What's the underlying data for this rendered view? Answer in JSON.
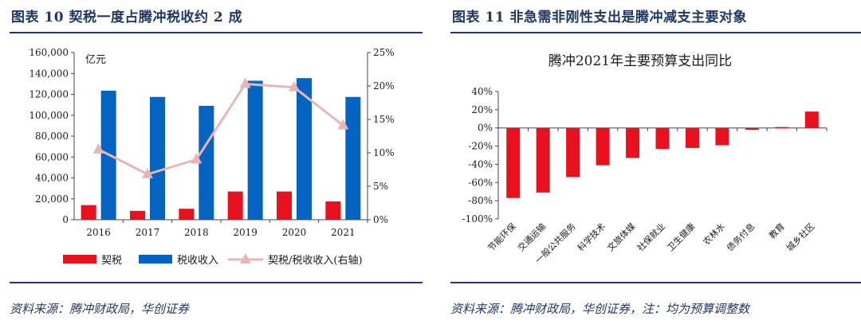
{
  "left_panel": {
    "figure_title": "图表 10   契税一度占腾冲税收约 2 成",
    "source": "资料来源：腾冲财政局，华创证券"
  },
  "right_panel": {
    "figure_title": "图表 11   非急需非刚性支出是腾冲减支主要对象",
    "source": "资料来源：腾冲财政局，华创证券，注：均为预算调整数"
  },
  "chart_data": [
    {
      "type": "bar",
      "title": "",
      "unit_label": "亿元",
      "categories": [
        "2016",
        "2017",
        "2018",
        "2019",
        "2020",
        "2021"
      ],
      "series": [
        {
          "name": "契税",
          "type": "bar",
          "axis": "left",
          "color": "#e8111d",
          "values": [
            14000,
            8500,
            10500,
            27000,
            27000,
            17500
          ]
        },
        {
          "name": "税收收入",
          "type": "bar",
          "axis": "left",
          "color": "#0563c1",
          "values": [
            123500,
            117500,
            109000,
            133000,
            135500,
            117500
          ]
        },
        {
          "name": "契税/税收收入(右轴)",
          "type": "line",
          "axis": "right",
          "color": "#e7b7b7",
          "values": [
            10.5,
            6.8,
            9.0,
            20.3,
            19.8,
            14.1
          ]
        }
      ],
      "y_left": {
        "min": 0,
        "max": 160000,
        "step": 20000,
        "ticks": [
          "0",
          "20,000",
          "40,000",
          "60,000",
          "80,000",
          "100,000",
          "120,000",
          "140,000",
          "160,000"
        ]
      },
      "y_right": {
        "min": 0,
        "max": 25,
        "step": 5,
        "ticks": [
          "0%",
          "5%",
          "10%",
          "15%",
          "20%",
          "25%"
        ]
      },
      "legend_position": "bottom",
      "grid": false
    },
    {
      "type": "bar",
      "title": "腾冲2021年主要预算支出同比",
      "categories": [
        "节能环保",
        "交通运输",
        "一般公共服务",
        "科学技术",
        "文旅体媒",
        "社保就业",
        "卫生健康",
        "农林水",
        "债务付息",
        "教育",
        "城乡社区"
      ],
      "series": [
        {
          "name": "",
          "color": "#e8111d",
          "values": [
            -77,
            -71,
            -54,
            -41,
            -33,
            -23,
            -22,
            -19,
            -2,
            1,
            18
          ]
        }
      ],
      "y": {
        "min": -100,
        "max": 40,
        "step": 20,
        "ticks": [
          "-100%",
          "-80%",
          "-60%",
          "-40%",
          "-20%",
          "0%",
          "20%",
          "40%"
        ]
      },
      "grid": false
    }
  ]
}
